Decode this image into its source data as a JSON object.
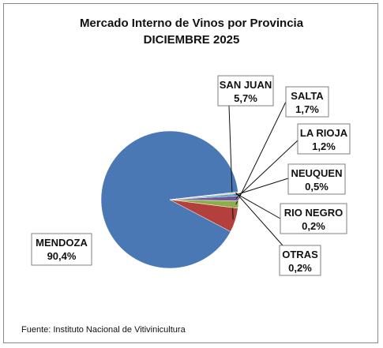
{
  "chart_data": {
    "type": "pie",
    "title": "Mercado Interno de Vinos por Provincia",
    "subtitle": "DICIEMBRE 2025",
    "source": "Fuente: Instituto Nacional de Vitivinicultura",
    "slices": [
      {
        "name": "MENDOZA",
        "value": 90.4,
        "label": "90,4%",
        "color": "#4a78b5"
      },
      {
        "name": "SAN JUAN",
        "value": 5.7,
        "label": "5,7%",
        "color": "#b3403d"
      },
      {
        "name": "SALTA",
        "value": 1.7,
        "label": "1,7%",
        "color": "#8eae4a"
      },
      {
        "name": "LA RIOJA",
        "value": 1.2,
        "label": "1,2%",
        "color": "#72579a"
      },
      {
        "name": "NEUQUEN",
        "value": 0.5,
        "label": "0,5%",
        "color": "#3a9fb8"
      },
      {
        "name": "RIO NEGRO",
        "value": 0.2,
        "label": "0,2%",
        "color": "#e88a2e"
      },
      {
        "name": "OTRAS",
        "value": 0.2,
        "label": "0,2%",
        "color": "#98b5dd"
      }
    ]
  }
}
